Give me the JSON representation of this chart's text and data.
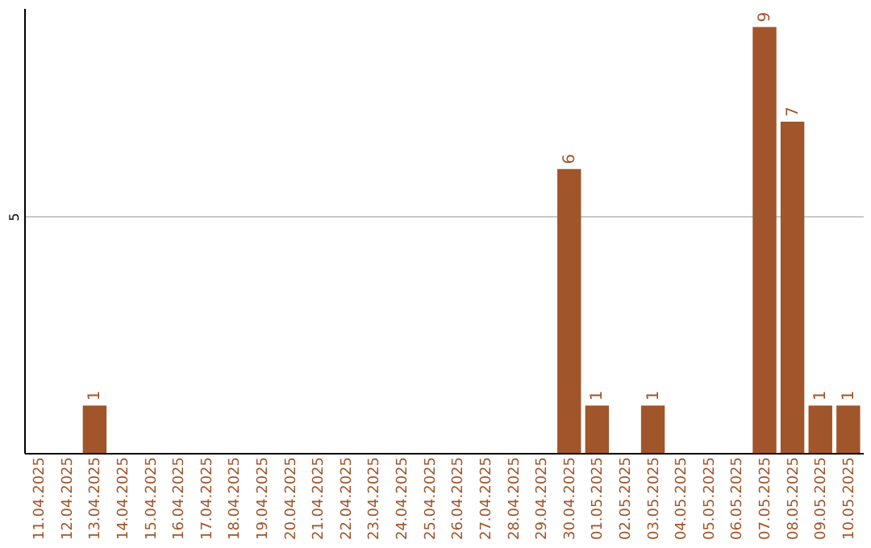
{
  "chart_data": {
    "type": "bar",
    "categories": [
      "11.04.2025",
      "12.04.2025",
      "13.04.2025",
      "14.04.2025",
      "15.04.2025",
      "16.04.2025",
      "17.04.2025",
      "18.04.2025",
      "19.04.2025",
      "20.04.2025",
      "21.04.2025",
      "22.04.2025",
      "23.04.2025",
      "24.04.2025",
      "25.04.2025",
      "26.04.2025",
      "27.04.2025",
      "28.04.2025",
      "29.04.2025",
      "30.04.2025",
      "01.05.2025",
      "02.05.2025",
      "03.05.2025",
      "04.05.2025",
      "05.05.2025",
      "06.05.2025",
      "07.05.2025",
      "08.05.2025",
      "09.05.2025",
      "10.05.2025"
    ],
    "values": [
      0,
      0,
      1,
      0,
      0,
      0,
      0,
      0,
      0,
      0,
      0,
      0,
      0,
      0,
      0,
      0,
      0,
      0,
      0,
      6,
      1,
      0,
      1,
      0,
      0,
      0,
      9,
      7,
      1,
      1
    ],
    "value_labels": [
      null,
      null,
      "1",
      null,
      null,
      null,
      null,
      null,
      null,
      null,
      null,
      null,
      null,
      null,
      null,
      null,
      null,
      null,
      null,
      "6",
      "1",
      null,
      "1",
      null,
      null,
      null,
      "9",
      "7",
      "1",
      "1"
    ],
    "color": "#a0552a",
    "ylim": [
      0,
      9.4
    ],
    "yticks": [
      5
    ],
    "grid": "y"
  }
}
